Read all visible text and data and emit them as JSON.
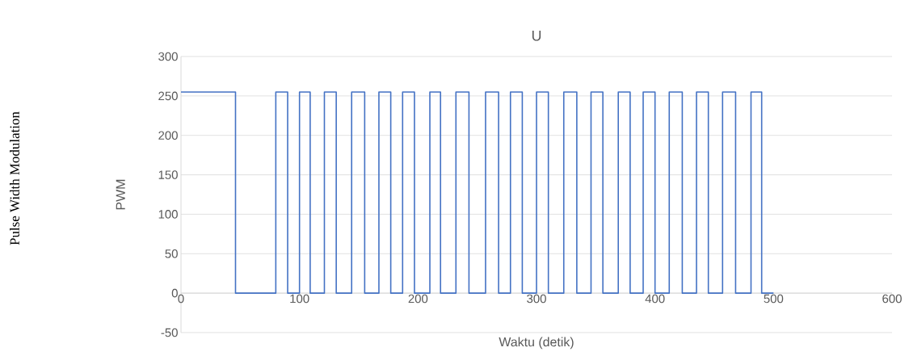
{
  "chart_data": {
    "type": "step",
    "title": "U",
    "xlabel": "Waktu (detik)",
    "ylabel": "PWM",
    "annotations": [
      "Pulse Width Modulation"
    ],
    "x": [
      0,
      46,
      80,
      90,
      100,
      109,
      121,
      131,
      144,
      155,
      167,
      177,
      187,
      197,
      210,
      219,
      232,
      243,
      257,
      268,
      278,
      288,
      300,
      310,
      323,
      334,
      346,
      356,
      369,
      379,
      390,
      400,
      412,
      423,
      435,
      445,
      457,
      468,
      481,
      490,
      500
    ],
    "series": [
      {
        "color": "#4472c4",
        "values": [
          255,
          0,
          255,
          0,
          255,
          0,
          255,
          0,
          255,
          0,
          255,
          0,
          255,
          0,
          255,
          0,
          255,
          0,
          255,
          0,
          255,
          0,
          255,
          0,
          255,
          0,
          255,
          0,
          255,
          0,
          255,
          0,
          255,
          0,
          255,
          0,
          255,
          0,
          255,
          0,
          0
        ]
      }
    ],
    "xlim": [
      0,
      600
    ],
    "ylim": [
      -50,
      300
    ],
    "xticks": [
      0,
      100,
      200,
      300,
      400,
      500,
      600
    ],
    "yticks": [
      -50,
      0,
      50,
      100,
      150,
      200,
      250,
      300
    ],
    "grid": "y"
  }
}
